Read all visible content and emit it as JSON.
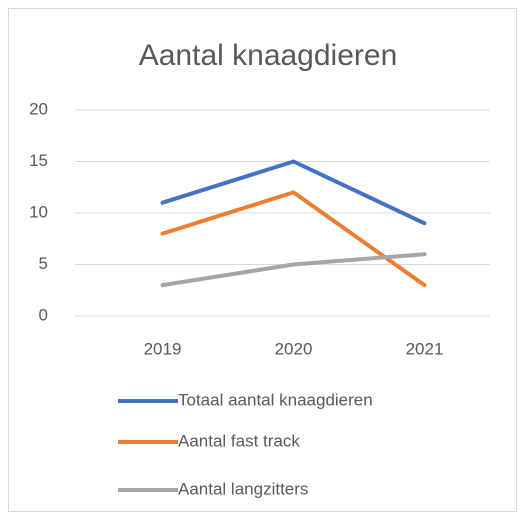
{
  "chart_data": {
    "type": "line",
    "title": "Aantal knaagdieren",
    "categories": [
      "2019",
      "2020",
      "2021"
    ],
    "series": [
      {
        "name": "Totaal aantal knaagdieren",
        "color": "#4472c4",
        "values": [
          11,
          15,
          9
        ]
      },
      {
        "name": "Aantal fast track",
        "color": "#ed7d31",
        "values": [
          8,
          12,
          3
        ]
      },
      {
        "name": "Aantal langzitters",
        "color": "#a5a5a5",
        "values": [
          3,
          5,
          6
        ]
      }
    ],
    "ylim": [
      0,
      20
    ],
    "yticks": [
      0,
      5,
      10,
      15,
      20
    ],
    "grid": true,
    "legend": "bottom"
  }
}
